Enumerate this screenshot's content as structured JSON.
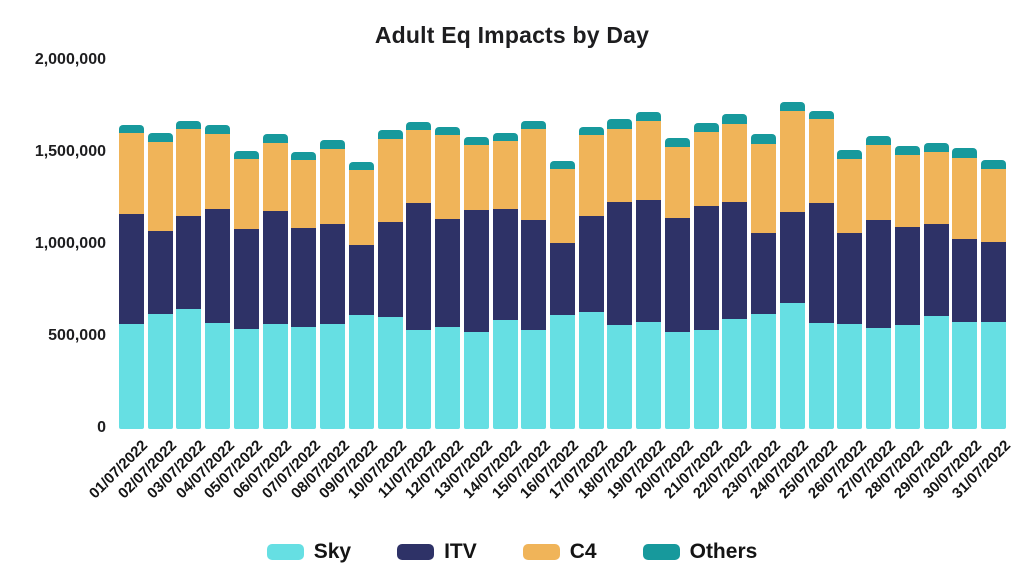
{
  "title": "Adult Eq Impacts by Day",
  "colors": {
    "sky": "#66DFE3",
    "itv": "#2E3267",
    "c4": "#F0B459",
    "others": "#17999C",
    "text": "#1d1d1f",
    "background": "#ffffff"
  },
  "yaxis": {
    "tick_labels": [
      "2,000,000",
      "1,500,000",
      "1,000,000",
      "500,000",
      "0"
    ],
    "tick_values": [
      2000000,
      1500000,
      1000000,
      500000,
      0
    ]
  },
  "legend": {
    "position": "bottom",
    "items": [
      {
        "label": "Sky",
        "color": "#66DFE3"
      },
      {
        "label": "ITV",
        "color": "#2E3267"
      },
      {
        "label": "C4",
        "color": "#F0B459"
      },
      {
        "label": "Others",
        "color": "#17999C"
      }
    ]
  },
  "chart_data": {
    "type": "bar",
    "stacked": true,
    "title": "Adult Eq Impacts by Day",
    "xlabel": "",
    "ylabel": "",
    "ylim": [
      0,
      2000000
    ],
    "grid": false,
    "legend_position": "bottom",
    "categories": [
      "01/07/2022",
      "02/07/2022",
      "03/07/2022",
      "04/07/2022",
      "05/07/2022",
      "06/07/2022",
      "07/07/2022",
      "08/07/2022",
      "09/07/2022",
      "10/07/2022",
      "11/07/2022",
      "12/07/2022",
      "13/07/2022",
      "14/07/2022",
      "15/07/2022",
      "16/07/2022",
      "17/07/2022",
      "18/07/2022",
      "19/07/2022",
      "20/07/2022",
      "21/07/2022",
      "22/07/2022",
      "23/07/2022",
      "24/07/2022",
      "25/07/2022",
      "26/07/2022",
      "27/07/2022",
      "28/07/2022",
      "29/07/2022",
      "30/07/2022",
      "31/07/2022"
    ],
    "series": [
      {
        "name": "Sky",
        "color": "#66DFE3",
        "values": [
          570000,
          625000,
          652000,
          576000,
          543000,
          571000,
          554000,
          571000,
          620000,
          609000,
          538000,
          554000,
          527000,
          592000,
          538000,
          620000,
          636000,
          565000,
          582000,
          527000,
          538000,
          598000,
          625000,
          685000,
          576000,
          571000,
          549000,
          565000,
          614000,
          582000,
          582000
        ]
      },
      {
        "name": "ITV",
        "color": "#2E3267",
        "values": [
          597000,
          450000,
          505000,
          620000,
          543000,
          614000,
          538000,
          543000,
          380000,
          516000,
          690000,
          587000,
          663000,
          603000,
          598000,
          391000,
          522000,
          668000,
          663000,
          620000,
          674000,
          636000,
          440000,
          495000,
          652000,
          495000,
          587000,
          533000,
          500000,
          451000,
          435000
        ]
      },
      {
        "name": "C4",
        "color": "#F0B459",
        "values": [
          440000,
          484000,
          473000,
          408000,
          380000,
          370000,
          370000,
          408000,
          408000,
          451000,
          397000,
          457000,
          353000,
          370000,
          495000,
          402000,
          440000,
          397000,
          429000,
          386000,
          402000,
          424000,
          484000,
          549000,
          457000,
          402000,
          408000,
          391000,
          391000,
          440000,
          397000
        ]
      },
      {
        "name": "Others",
        "color": "#17999C",
        "values": [
          43000,
          49000,
          43000,
          49000,
          43000,
          49000,
          43000,
          49000,
          43000,
          49000,
          43000,
          43000,
          43000,
          43000,
          43000,
          43000,
          43000,
          54000,
          49000,
          49000,
          49000,
          54000,
          54000,
          49000,
          43000,
          49000,
          49000,
          49000,
          49000,
          54000,
          49000
        ]
      }
    ]
  }
}
